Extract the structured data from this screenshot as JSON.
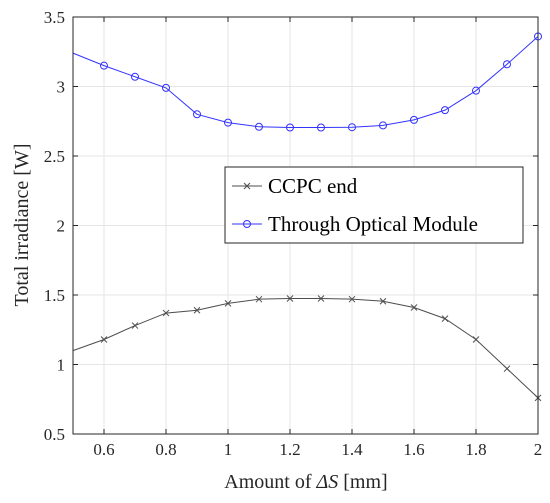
{
  "chart_data": {
    "type": "line",
    "xlabel_prefix": "Amount of ",
    "xlabel_symbol": "ΔS",
    "xlabel_suffix": " [mm]",
    "ylabel": "Total irradiance [W]",
    "xlim": [
      0.5,
      2
    ],
    "ylim": [
      0.5,
      3.5
    ],
    "xticks": [
      "0.6",
      "0.8",
      "1",
      "1.2",
      "1.4",
      "1.6",
      "1.8",
      "2"
    ],
    "xtick_values": [
      0.6,
      0.8,
      1.0,
      1.2,
      1.4,
      1.6,
      1.8,
      2.0
    ],
    "yticks": [
      "0.5",
      "1",
      "1.5",
      "2",
      "2.5",
      "3",
      "3.5"
    ],
    "ytick_values": [
      0.5,
      1.0,
      1.5,
      2.0,
      2.5,
      3.0,
      3.5
    ],
    "grid": true,
    "legend_position": "center-right",
    "series": [
      {
        "name": "CCPC end",
        "color": "#4d4d4d",
        "marker": "x",
        "x": [
          0.5,
          0.6,
          0.7,
          0.8,
          0.9,
          1.0,
          1.1,
          1.2,
          1.3,
          1.4,
          1.5,
          1.6,
          1.7,
          1.8,
          1.9,
          2.0
        ],
        "y": [
          1.1,
          1.18,
          1.28,
          1.37,
          1.39,
          1.44,
          1.47,
          1.475,
          1.475,
          1.47,
          1.455,
          1.41,
          1.33,
          1.18,
          0.97,
          0.76
        ]
      },
      {
        "name": "Through Optical Module",
        "color": "#3333ff",
        "marker": "o",
        "x": [
          0.5,
          0.6,
          0.7,
          0.8,
          0.9,
          1.0,
          1.1,
          1.2,
          1.3,
          1.4,
          1.5,
          1.6,
          1.7,
          1.8,
          1.9,
          2.0
        ],
        "y": [
          3.24,
          3.15,
          3.07,
          2.99,
          2.8,
          2.74,
          2.71,
          2.705,
          2.705,
          2.707,
          2.72,
          2.76,
          2.83,
          2.97,
          3.16,
          3.36
        ]
      }
    ]
  }
}
